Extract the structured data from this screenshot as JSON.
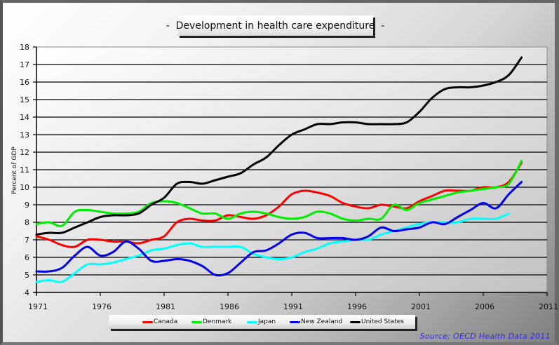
{
  "chart_data": {
    "type": "line",
    "title": "-  Development in health care expenditure  -",
    "xlabel": "",
    "ylabel": "Percent of GDP",
    "xlim": [
      1971,
      2011
    ],
    "ylim": [
      4,
      18
    ],
    "xticks": [
      "1971",
      "1976",
      "1981",
      "1986",
      "1991",
      "1996",
      "2001",
      "2006",
      "2011"
    ],
    "yticks": [
      "4",
      "5",
      "6",
      "7",
      "8",
      "9",
      "10",
      "11",
      "12",
      "13",
      "14",
      "15",
      "16",
      "17",
      "18"
    ],
    "grid": "horizontal",
    "legend_position": "bottom",
    "source": "Source: OECD Health Data 2011",
    "x": [
      1971,
      1972,
      1973,
      1974,
      1975,
      1976,
      1977,
      1978,
      1979,
      1980,
      1981,
      1982,
      1983,
      1984,
      1985,
      1986,
      1987,
      1988,
      1989,
      1990,
      1991,
      1992,
      1993,
      1994,
      1995,
      1996,
      1997,
      1998,
      1999,
      2000,
      2001,
      2002,
      2003,
      2004,
      2005,
      2006,
      2007,
      2008,
      2009
    ],
    "series": [
      {
        "name": "Canada",
        "color": "#ff0000",
        "values": [
          7.2,
          7.0,
          6.7,
          6.6,
          7.0,
          7.0,
          6.9,
          6.9,
          6.8,
          7.0,
          7.2,
          8.0,
          8.2,
          8.1,
          8.1,
          8.4,
          8.3,
          8.2,
          8.4,
          8.9,
          9.6,
          9.8,
          9.7,
          9.5,
          9.1,
          8.9,
          8.8,
          9.0,
          8.9,
          8.8,
          9.2,
          9.5,
          9.8,
          9.8,
          9.8,
          10.0,
          10.0,
          10.3,
          11.4
        ]
      },
      {
        "name": "Denmark",
        "color": "#00ee00",
        "values": [
          7.9,
          8.0,
          7.8,
          8.6,
          8.7,
          8.6,
          8.5,
          8.5,
          8.6,
          9.1,
          9.2,
          9.1,
          8.8,
          8.5,
          8.5,
          8.2,
          8.5,
          8.6,
          8.5,
          8.3,
          8.2,
          8.3,
          8.6,
          8.5,
          8.2,
          8.1,
          8.2,
          8.2,
          9.0,
          8.7,
          9.1,
          9.3,
          9.5,
          9.7,
          9.8,
          9.9,
          10.0,
          10.2,
          11.5
        ]
      },
      {
        "name": "Japan",
        "color": "#00ffff",
        "values": [
          4.6,
          4.7,
          4.6,
          5.1,
          5.6,
          5.6,
          5.7,
          5.9,
          6.1,
          6.4,
          6.5,
          6.7,
          6.8,
          6.6,
          6.6,
          6.6,
          6.6,
          6.2,
          6.0,
          5.9,
          6.0,
          6.3,
          6.5,
          6.8,
          6.9,
          7.0,
          7.0,
          7.3,
          7.5,
          7.7,
          7.9,
          8.0,
          8.0,
          8.0,
          8.2,
          8.2,
          8.2,
          8.5,
          null
        ]
      },
      {
        "name": "New Zealand",
        "color": "#0000ee",
        "values": [
          5.2,
          5.2,
          5.4,
          6.1,
          6.6,
          6.1,
          6.3,
          6.9,
          6.5,
          5.8,
          5.8,
          5.9,
          5.8,
          5.5,
          5.0,
          5.1,
          5.7,
          6.3,
          6.4,
          6.8,
          7.3,
          7.4,
          7.1,
          7.1,
          7.1,
          7.0,
          7.2,
          7.7,
          7.5,
          7.6,
          7.7,
          8.0,
          7.9,
          8.3,
          8.7,
          9.1,
          8.8,
          9.6,
          10.3
        ]
      },
      {
        "name": "United States",
        "color": "#000000",
        "values": [
          7.3,
          7.4,
          7.4,
          7.7,
          8.0,
          8.3,
          8.4,
          8.4,
          8.5,
          9.0,
          9.4,
          10.2,
          10.3,
          10.2,
          10.4,
          10.6,
          10.8,
          11.3,
          11.7,
          12.4,
          13.0,
          13.3,
          13.6,
          13.6,
          13.7,
          13.7,
          13.6,
          13.6,
          13.6,
          13.7,
          14.3,
          15.1,
          15.6,
          15.7,
          15.7,
          15.8,
          16.0,
          16.4,
          17.4
        ]
      }
    ]
  }
}
